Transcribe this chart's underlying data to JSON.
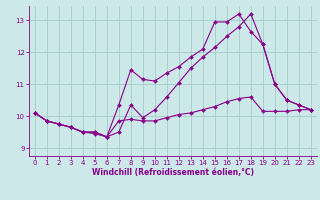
{
  "background_color": "#cce8e8",
  "grid_color": "#aacfcf",
  "line_color": "#880088",
  "marker": "D",
  "marker_size": 2.0,
  "xlabel": "Windchill (Refroidissement éolien,°C)",
  "xlim": [
    -0.5,
    23.5
  ],
  "ylim": [
    8.75,
    13.45
  ],
  "yticks": [
    9,
    10,
    11,
    12,
    13
  ],
  "xticks": [
    0,
    1,
    2,
    3,
    4,
    5,
    6,
    7,
    8,
    9,
    10,
    11,
    12,
    13,
    14,
    15,
    16,
    17,
    18,
    19,
    20,
    21,
    22,
    23
  ],
  "series": [
    [
      10.1,
      9.85,
      9.75,
      9.65,
      9.5,
      9.45,
      9.35,
      9.85,
      9.9,
      9.85,
      9.85,
      9.95,
      10.05,
      10.1,
      10.2,
      10.3,
      10.45,
      10.55,
      10.6,
      10.15,
      10.15,
      10.15,
      10.2,
      10.2
    ],
    [
      10.1,
      9.85,
      9.75,
      9.65,
      9.5,
      9.5,
      9.35,
      10.35,
      11.45,
      11.15,
      11.1,
      11.35,
      11.55,
      11.85,
      12.1,
      12.95,
      12.95,
      13.2,
      12.65,
      12.25,
      11.0,
      10.5,
      10.35,
      10.2
    ],
    [
      10.1,
      9.85,
      9.75,
      9.65,
      9.5,
      9.5,
      9.35,
      9.5,
      10.35,
      9.95,
      10.2,
      10.6,
      11.05,
      11.5,
      11.85,
      12.15,
      12.5,
      12.8,
      13.2,
      12.25,
      11.0,
      10.5,
      10.35,
      10.2
    ]
  ]
}
